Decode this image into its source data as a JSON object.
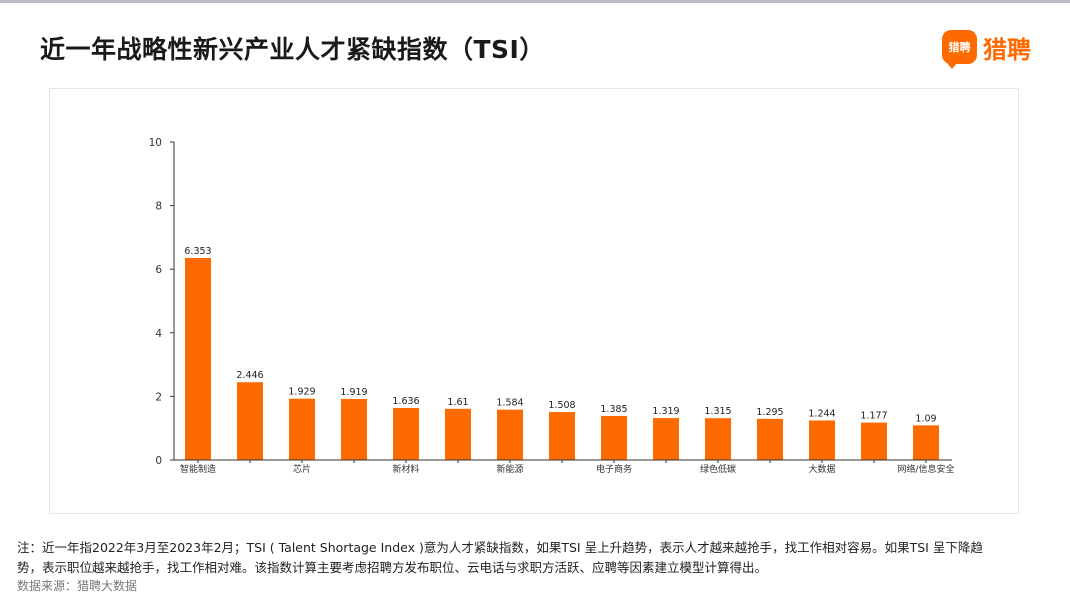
{
  "header": {
    "title": "近一年战略性新兴产业人才紧缺指数（TSI）",
    "logo_badge": "猎聘",
    "logo_text": "猎聘"
  },
  "colors": {
    "bar": "#ff6a00",
    "brand": "#ff6a00",
    "axis": "#333333"
  },
  "chart_data": {
    "type": "bar",
    "categories": [
      "智能制造",
      "",
      "芯片",
      "",
      "新材料",
      "",
      "新能源",
      "",
      "电子商务",
      "",
      "绿色低碳",
      "",
      "大数据",
      "",
      "网络/信息安全"
    ],
    "values": [
      6.353,
      2.446,
      1.929,
      1.919,
      1.636,
      1.61,
      1.584,
      1.508,
      1.385,
      1.319,
      1.315,
      1.295,
      1.244,
      1.177,
      1.09
    ],
    "value_labels": [
      "6.353",
      "2.446",
      "1.929",
      "1.919",
      "1.636",
      "1.61",
      "1.584",
      "1.508",
      "1.385",
      "1.319",
      "1.315",
      "1.295",
      "1.244",
      "1.177",
      "1.09"
    ],
    "y_ticks": [
      "0",
      "2",
      "4",
      "6",
      "8",
      "10"
    ],
    "ylim": [
      0,
      10
    ],
    "grid": false,
    "legend": "none"
  },
  "footer": {
    "note_line1": "注：近一年指2022年3月至2023年2月；TSI ( Talent Shortage Index )意为人才紧缺指数，如果TSI 呈上升趋势，表示人才越来越抢手，找工作相对容易。如果TSI 呈下降趋",
    "note_line2": "势，表示职位越来越抢手，找工作相对难。该指数计算主要考虑招聘方发布职位、云电话与求职方活跃、应聘等因素建立模型计算得出。",
    "source": "数据来源：猎聘大数据"
  }
}
